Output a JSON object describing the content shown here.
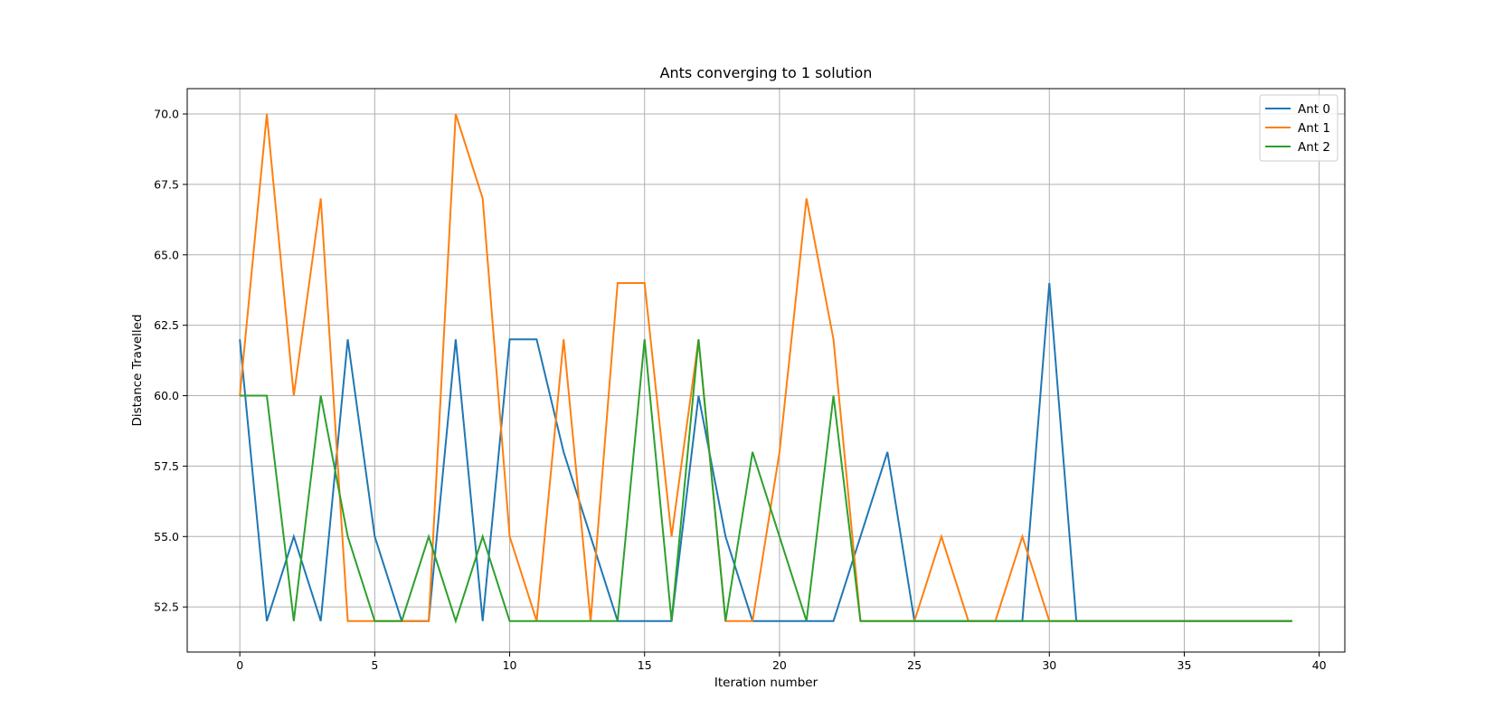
{
  "chart_data": {
    "type": "line",
    "title": "Ants converging to 1 solution",
    "xlabel": "Iteration number",
    "ylabel": "Distance Travelled",
    "xlim": [
      -1.95,
      40.95
    ],
    "ylim": [
      50.9,
      70.9
    ],
    "xticks": [
      0,
      5,
      10,
      15,
      20,
      25,
      30,
      35,
      40
    ],
    "yticks": [
      52.5,
      55.0,
      57.5,
      60.0,
      62.5,
      65.0,
      67.5,
      70.0
    ],
    "ytick_labels": [
      "52.5",
      "55.0",
      "57.5",
      "60.0",
      "62.5",
      "65.0",
      "67.5",
      "70.0"
    ],
    "grid": true,
    "legend_position": "top-right",
    "x": [
      0,
      1,
      2,
      3,
      4,
      5,
      6,
      7,
      8,
      9,
      10,
      11,
      12,
      13,
      14,
      15,
      16,
      17,
      18,
      19,
      20,
      21,
      22,
      23,
      24,
      25,
      26,
      27,
      28,
      29,
      30,
      31,
      32,
      33,
      34,
      35,
      36,
      37,
      38,
      39
    ],
    "series": [
      {
        "name": "Ant 0",
        "color": "#1f77b4",
        "values": [
          62,
          52,
          55,
          52,
          62,
          55,
          52,
          52,
          62,
          52,
          62,
          62,
          58,
          55,
          52,
          52,
          52,
          60,
          55,
          52,
          52,
          52,
          52,
          55,
          58,
          52,
          52,
          52,
          52,
          52,
          64,
          52,
          52,
          52,
          52,
          52,
          52,
          52,
          52,
          52
        ]
      },
      {
        "name": "Ant 1",
        "color": "#ff7f0e",
        "values": [
          60,
          70,
          60,
          67,
          52,
          52,
          52,
          52,
          70,
          67,
          55,
          52,
          62,
          52,
          64,
          64,
          55,
          62,
          52,
          52,
          58,
          67,
          62,
          52,
          52,
          52,
          55,
          52,
          52,
          55,
          52,
          52,
          52,
          52,
          52,
          52,
          52,
          52,
          52,
          52
        ]
      },
      {
        "name": "Ant 2",
        "color": "#2ca02c",
        "values": [
          60,
          60,
          52,
          60,
          55,
          52,
          52,
          55,
          52,
          55,
          52,
          52,
          52,
          52,
          52,
          62,
          52,
          62,
          52,
          58,
          55,
          52,
          60,
          52,
          52,
          52,
          52,
          52,
          52,
          52,
          52,
          52,
          52,
          52,
          52,
          52,
          52,
          52,
          52,
          52
        ]
      }
    ]
  }
}
